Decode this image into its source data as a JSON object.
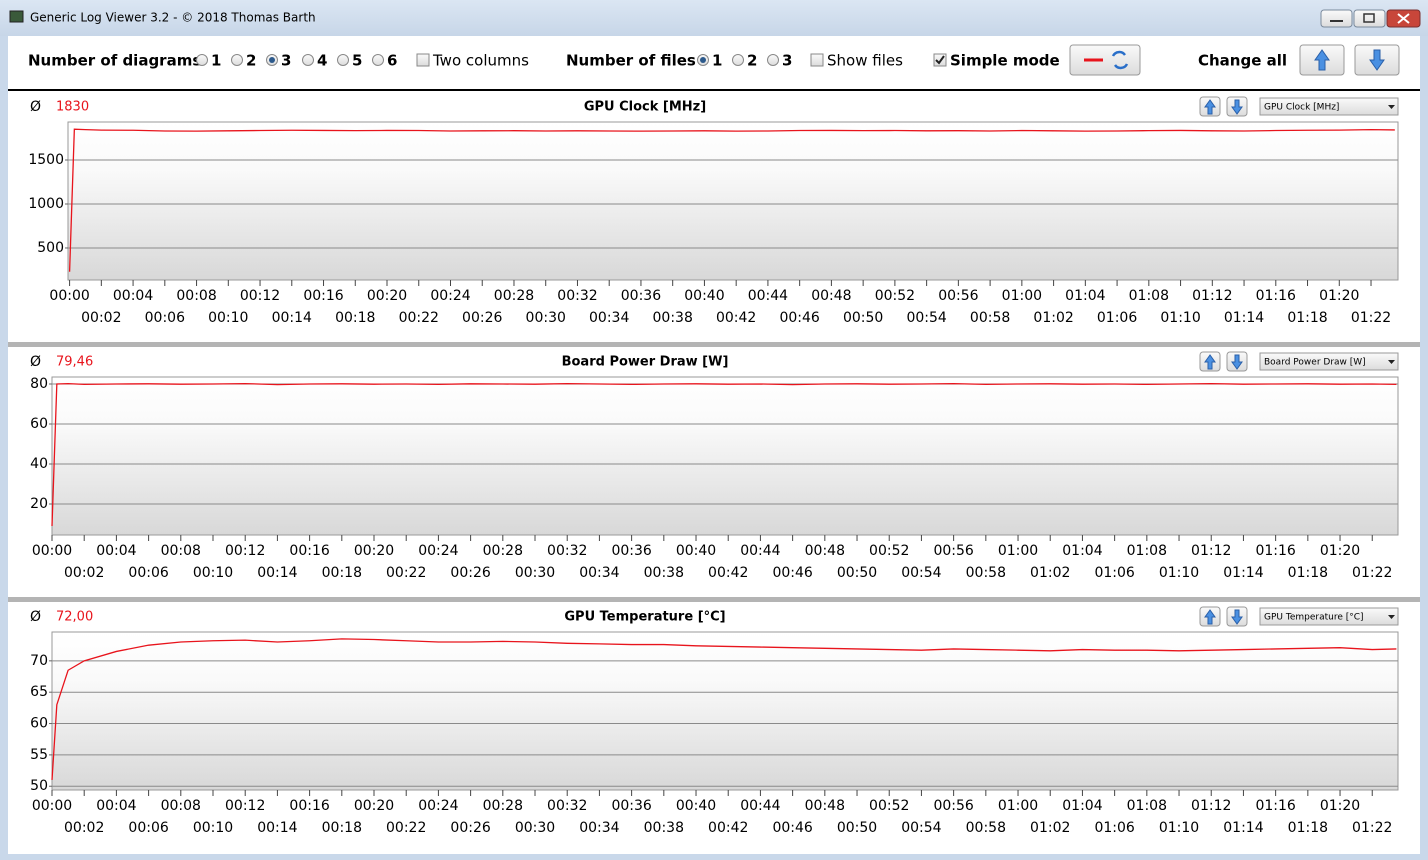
{
  "window": {
    "title": "Generic Log Viewer 3.2 - © 2018 Thomas Barth"
  },
  "toolbar": {
    "diagrams_label": "Number of diagrams",
    "diagram_options": [
      "1",
      "2",
      "3",
      "4",
      "5",
      "6"
    ],
    "diagrams_selected": "3",
    "two_columns": {
      "label": "Two columns",
      "checked": false
    },
    "files_label": "Number of files",
    "file_options": [
      "1",
      "2",
      "3"
    ],
    "files_selected": "1",
    "show_files": {
      "label": "Show files",
      "checked": false
    },
    "simple_mode": {
      "label": "Simple mode",
      "checked": true
    },
    "change_all": "Change all"
  },
  "chart_data": [
    {
      "type": "line",
      "title": "GPU Clock [MHz]",
      "average_symbol": "Ø",
      "average": "1830",
      "selector": "GPU Clock [MHz]",
      "x": [
        0,
        0.3,
        1,
        2,
        4,
        6,
        8,
        10,
        12,
        14,
        16,
        18,
        20,
        22,
        24,
        26,
        28,
        30,
        32,
        34,
        36,
        38,
        40,
        42,
        44,
        46,
        48,
        50,
        52,
        54,
        56,
        58,
        60,
        62,
        64,
        66,
        68,
        70,
        72,
        74,
        76,
        78,
        80,
        82,
        83.5
      ],
      "series": [
        {
          "color": "#e8141c",
          "values": [
            230,
            1850,
            1845,
            1840,
            1838,
            1830,
            1828,
            1832,
            1835,
            1838,
            1836,
            1834,
            1836,
            1835,
            1830,
            1832,
            1833,
            1830,
            1832,
            1830,
            1828,
            1830,
            1832,
            1828,
            1830,
            1835,
            1836,
            1834,
            1835,
            1832,
            1833,
            1830,
            1835,
            1832,
            1828,
            1830,
            1834,
            1836,
            1832,
            1830,
            1835,
            1838,
            1840,
            1845,
            1842
          ]
        }
      ],
      "xlim": [
        -0.1,
        83.7
      ],
      "ylim": [
        136,
        1932
      ],
      "yticks": [
        500,
        1000,
        1500
      ],
      "grid": true,
      "xticks": [
        {
          "value": 0,
          "label": "00:00"
        },
        {
          "value": 2,
          "label": "00:02"
        },
        {
          "value": 4,
          "label": "00:04"
        },
        {
          "value": 6,
          "label": "00:06"
        },
        {
          "value": 8,
          "label": "00:08"
        },
        {
          "value": 10,
          "label": "00:10"
        },
        {
          "value": 12,
          "label": "00:12"
        },
        {
          "value": 14,
          "label": "00:14"
        },
        {
          "value": 16,
          "label": "00:16"
        },
        {
          "value": 18,
          "label": "00:18"
        },
        {
          "value": 20,
          "label": "00:20"
        },
        {
          "value": 22,
          "label": "00:22"
        },
        {
          "value": 24,
          "label": "00:24"
        },
        {
          "value": 26,
          "label": "00:26"
        },
        {
          "value": 28,
          "label": "00:28"
        },
        {
          "value": 30,
          "label": "00:30"
        },
        {
          "value": 32,
          "label": "00:32"
        },
        {
          "value": 34,
          "label": "00:34"
        },
        {
          "value": 36,
          "label": "00:36"
        },
        {
          "value": 38,
          "label": "00:38"
        },
        {
          "value": 40,
          "label": "00:40"
        },
        {
          "value": 42,
          "label": "00:42"
        },
        {
          "value": 44,
          "label": "00:44"
        },
        {
          "value": 46,
          "label": "00:46"
        },
        {
          "value": 48,
          "label": "00:48"
        },
        {
          "value": 50,
          "label": "00:50"
        },
        {
          "value": 52,
          "label": "00:52"
        },
        {
          "value": 54,
          "label": "00:54"
        },
        {
          "value": 56,
          "label": "00:56"
        },
        {
          "value": 58,
          "label": "00:58"
        },
        {
          "value": 60,
          "label": "01:00"
        },
        {
          "value": 62,
          "label": "01:02"
        },
        {
          "value": 64,
          "label": "01:04"
        },
        {
          "value": 66,
          "label": "01:06"
        },
        {
          "value": 68,
          "label": "01:08"
        },
        {
          "value": 70,
          "label": "01:10"
        },
        {
          "value": 72,
          "label": "01:12"
        },
        {
          "value": 74,
          "label": "01:14"
        },
        {
          "value": 76,
          "label": "01:16"
        },
        {
          "value": 78,
          "label": "01:18"
        },
        {
          "value": 80,
          "label": "01:20"
        },
        {
          "value": 82,
          "label": "01:22"
        }
      ]
    },
    {
      "type": "line",
      "title": "Board Power Draw [W]",
      "average_symbol": "Ø",
      "average": "79,46",
      "selector": "Board Power Draw [W]",
      "x": [
        0,
        0.3,
        1,
        2,
        4,
        6,
        8,
        10,
        12,
        14,
        16,
        18,
        20,
        22,
        24,
        26,
        28,
        30,
        32,
        34,
        36,
        38,
        40,
        42,
        44,
        46,
        48,
        50,
        52,
        54,
        56,
        58,
        60,
        62,
        64,
        66,
        68,
        70,
        72,
        74,
        76,
        78,
        80,
        82,
        83.5
      ],
      "series": [
        {
          "color": "#e8141c",
          "values": [
            9,
            80,
            80.2,
            79.8,
            80,
            80.1,
            79.9,
            80,
            80.2,
            79.7,
            80,
            80.1,
            79.9,
            80,
            79.8,
            80.1,
            80,
            79.9,
            80.2,
            80,
            79.8,
            80,
            80.1,
            79.9,
            80,
            79.7,
            80,
            80.1,
            79.9,
            80,
            80.2,
            79.8,
            80,
            80.1,
            79.9,
            80,
            79.8,
            80,
            80.2,
            79.9,
            80,
            80.1,
            79.9,
            80,
            79.8
          ]
        }
      ],
      "xlim": [
        0,
        83.6
      ],
      "ylim": [
        4.5,
        83.5
      ],
      "yticks": [
        20,
        40,
        60,
        80
      ],
      "grid": true,
      "xticks": [
        {
          "value": 0,
          "label": "00:00"
        },
        {
          "value": 2,
          "label": "00:02"
        },
        {
          "value": 4,
          "label": "00:04"
        },
        {
          "value": 6,
          "label": "00:06"
        },
        {
          "value": 8,
          "label": "00:08"
        },
        {
          "value": 10,
          "label": "00:10"
        },
        {
          "value": 12,
          "label": "00:12"
        },
        {
          "value": 14,
          "label": "00:14"
        },
        {
          "value": 16,
          "label": "00:16"
        },
        {
          "value": 18,
          "label": "00:18"
        },
        {
          "value": 20,
          "label": "00:20"
        },
        {
          "value": 22,
          "label": "00:22"
        },
        {
          "value": 24,
          "label": "00:24"
        },
        {
          "value": 26,
          "label": "00:26"
        },
        {
          "value": 28,
          "label": "00:28"
        },
        {
          "value": 30,
          "label": "00:30"
        },
        {
          "value": 32,
          "label": "00:32"
        },
        {
          "value": 34,
          "label": "00:34"
        },
        {
          "value": 36,
          "label": "00:36"
        },
        {
          "value": 38,
          "label": "00:38"
        },
        {
          "value": 40,
          "label": "00:40"
        },
        {
          "value": 42,
          "label": "00:42"
        },
        {
          "value": 44,
          "label": "00:44"
        },
        {
          "value": 46,
          "label": "00:46"
        },
        {
          "value": 48,
          "label": "00:48"
        },
        {
          "value": 50,
          "label": "00:50"
        },
        {
          "value": 52,
          "label": "00:52"
        },
        {
          "value": 54,
          "label": "00:54"
        },
        {
          "value": 56,
          "label": "00:56"
        },
        {
          "value": 58,
          "label": "00:58"
        },
        {
          "value": 60,
          "label": "01:00"
        },
        {
          "value": 62,
          "label": "01:02"
        },
        {
          "value": 64,
          "label": "01:04"
        },
        {
          "value": 66,
          "label": "01:06"
        },
        {
          "value": 68,
          "label": "01:08"
        },
        {
          "value": 70,
          "label": "01:10"
        },
        {
          "value": 72,
          "label": "01:12"
        },
        {
          "value": 74,
          "label": "01:14"
        },
        {
          "value": 76,
          "label": "01:16"
        },
        {
          "value": 78,
          "label": "01:18"
        },
        {
          "value": 80,
          "label": "01:20"
        },
        {
          "value": 82,
          "label": "01:22"
        }
      ]
    },
    {
      "type": "line",
      "title": "GPU Temperature [°C]",
      "average_symbol": "Ø",
      "average": "72,00",
      "selector": "GPU Temperature [°C]",
      "x": [
        0,
        0.3,
        1,
        2,
        4,
        6,
        8,
        10,
        12,
        14,
        16,
        18,
        20,
        22,
        24,
        26,
        28,
        30,
        32,
        34,
        36,
        38,
        40,
        42,
        44,
        46,
        48,
        50,
        52,
        54,
        56,
        58,
        60,
        62,
        64,
        66,
        68,
        70,
        72,
        74,
        76,
        78,
        80,
        82,
        83.5
      ],
      "series": [
        {
          "color": "#e8141c",
          "values": [
            51,
            63,
            68.5,
            70,
            71.5,
            72.5,
            73,
            73.2,
            73.3,
            73,
            73.2,
            73.5,
            73.4,
            73.2,
            73,
            73,
            73.1,
            73,
            72.8,
            72.7,
            72.6,
            72.6,
            72.4,
            72.3,
            72.2,
            72.1,
            72,
            71.9,
            71.8,
            71.7,
            71.9,
            71.8,
            71.7,
            71.6,
            71.8,
            71.7,
            71.7,
            71.6,
            71.7,
            71.8,
            71.9,
            72,
            72.1,
            71.8,
            71.9
          ]
        }
      ],
      "xlim": [
        0,
        83.6
      ],
      "ylim": [
        49.4,
        74.6
      ],
      "yticks": [
        50,
        55,
        60,
        65,
        70
      ],
      "grid": true,
      "xticks": [
        {
          "value": 0,
          "label": "00:00"
        },
        {
          "value": 2,
          "label": "00:02"
        },
        {
          "value": 4,
          "label": "00:04"
        },
        {
          "value": 6,
          "label": "00:06"
        },
        {
          "value": 8,
          "label": "00:08"
        },
        {
          "value": 10,
          "label": "00:10"
        },
        {
          "value": 12,
          "label": "00:12"
        },
        {
          "value": 14,
          "label": "00:14"
        },
        {
          "value": 16,
          "label": "00:16"
        },
        {
          "value": 18,
          "label": "00:18"
        },
        {
          "value": 20,
          "label": "00:20"
        },
        {
          "value": 22,
          "label": "00:22"
        },
        {
          "value": 24,
          "label": "00:24"
        },
        {
          "value": 26,
          "label": "00:26"
        },
        {
          "value": 28,
          "label": "00:28"
        },
        {
          "value": 30,
          "label": "00:30"
        },
        {
          "value": 32,
          "label": "00:32"
        },
        {
          "value": 34,
          "label": "00:34"
        },
        {
          "value": 36,
          "label": "00:36"
        },
        {
          "value": 38,
          "label": "00:38"
        },
        {
          "value": 40,
          "label": "00:40"
        },
        {
          "value": 42,
          "label": "00:42"
        },
        {
          "value": 44,
          "label": "00:44"
        },
        {
          "value": 46,
          "label": "00:46"
        },
        {
          "value": 48,
          "label": "00:48"
        },
        {
          "value": 50,
          "label": "00:50"
        },
        {
          "value": 52,
          "label": "00:52"
        },
        {
          "value": 54,
          "label": "00:54"
        },
        {
          "value": 56,
          "label": "00:56"
        },
        {
          "value": 58,
          "label": "00:58"
        },
        {
          "value": 60,
          "label": "01:00"
        },
        {
          "value": 62,
          "label": "01:02"
        },
        {
          "value": 64,
          "label": "01:04"
        },
        {
          "value": 66,
          "label": "01:06"
        },
        {
          "value": 68,
          "label": "01:08"
        },
        {
          "value": 70,
          "label": "01:10"
        },
        {
          "value": 72,
          "label": "01:12"
        },
        {
          "value": 74,
          "label": "01:14"
        },
        {
          "value": 76,
          "label": "01:16"
        },
        {
          "value": 78,
          "label": "01:18"
        },
        {
          "value": 80,
          "label": "01:20"
        },
        {
          "value": 82,
          "label": "01:22"
        }
      ]
    }
  ]
}
